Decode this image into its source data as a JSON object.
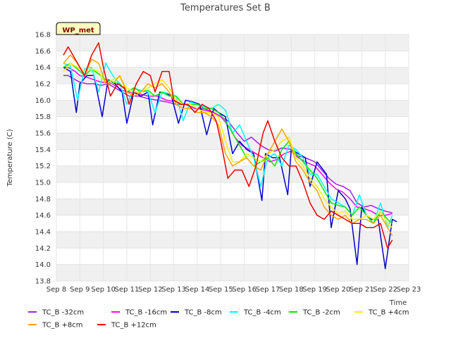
{
  "chart_data": {
    "type": "line",
    "title": "Temperatures Set B",
    "xlabel": "Time",
    "ylabel": "Temperature (C)",
    "badge": "WP_met",
    "xlim": [
      8,
      23
    ],
    "ylim": [
      13.8,
      16.8
    ],
    "yticks": [
      "13.8",
      "14.0",
      "14.2",
      "14.4",
      "14.6",
      "14.8",
      "15.0",
      "15.2",
      "15.4",
      "15.6",
      "15.8",
      "16.0",
      "16.2",
      "16.4",
      "16.6",
      "16.8"
    ],
    "xticks": [
      "Sep 8",
      "Sep 9",
      "Sep 10",
      "Sep 11",
      "Sep 12",
      "Sep 13",
      "Sep 14",
      "Sep 15",
      "Sep 16",
      "Sep 17",
      "Sep 18",
      "Sep 19",
      "Sep 20",
      "Sep 21",
      "Sep 22",
      "Sep 23"
    ],
    "grid": true,
    "legend_position": "bottom",
    "series": [
      {
        "name": "TC_B -32cm",
        "color": "#a020f0",
        "x": [
          8.3,
          8.5,
          8.8,
          9.0,
          9.3,
          9.6,
          9.9,
          10.2,
          10.5,
          10.8,
          11.1,
          11.5,
          11.9,
          12.3,
          12.7,
          13.1,
          13.5,
          13.9,
          14.3,
          14.7,
          15.0,
          15.3,
          15.7,
          16.0,
          16.3,
          16.7,
          17.0,
          17.3,
          17.6,
          18.0,
          18.3,
          18.6,
          19.0,
          19.3,
          19.6,
          19.9,
          20.2,
          20.5,
          20.8,
          21.1,
          21.4,
          21.7,
          22.0,
          22.3
        ],
        "y": [
          16.3,
          16.3,
          16.25,
          16.22,
          16.2,
          16.2,
          16.18,
          16.2,
          16.15,
          16.1,
          16.05,
          16.05,
          16.02,
          16.0,
          15.98,
          15.95,
          15.95,
          15.9,
          15.9,
          15.85,
          15.8,
          15.75,
          15.6,
          15.5,
          15.55,
          15.45,
          15.4,
          15.38,
          15.42,
          15.4,
          15.32,
          15.3,
          15.25,
          15.15,
          15.05,
          14.98,
          14.95,
          14.9,
          14.75,
          14.7,
          14.72,
          14.68,
          14.65,
          14.63
        ]
      },
      {
        "name": "TC_B -16cm",
        "color": "#ff00ff",
        "x": [
          8.3,
          8.5,
          8.8,
          9.0,
          9.3,
          9.6,
          9.9,
          10.2,
          10.5,
          10.8,
          11.1,
          11.5,
          11.9,
          12.3,
          12.7,
          13.1,
          13.5,
          13.9,
          14.3,
          14.7,
          15.0,
          15.3,
          15.6,
          15.9,
          16.2,
          16.5,
          16.8,
          17.1,
          17.4,
          17.7,
          18.0,
          18.3,
          18.6,
          19.0,
          19.3,
          19.6,
          19.9,
          20.2,
          20.5,
          20.8,
          21.1,
          21.4,
          21.7,
          22.0,
          22.3
        ],
        "y": [
          16.4,
          16.4,
          16.35,
          16.3,
          16.28,
          16.25,
          16.22,
          16.22,
          16.18,
          16.12,
          16.1,
          16.08,
          16.05,
          16.05,
          16.0,
          15.98,
          15.95,
          15.9,
          15.88,
          15.85,
          15.8,
          15.7,
          15.55,
          15.45,
          15.4,
          15.35,
          15.3,
          15.25,
          15.28,
          15.35,
          15.38,
          15.3,
          15.25,
          15.2,
          15.1,
          15.0,
          14.92,
          14.88,
          14.8,
          14.7,
          14.68,
          14.65,
          14.6,
          14.6,
          14.62
        ]
      },
      {
        "name": "TC_B -8cm",
        "color": "#0000cd",
        "x": [
          8.3,
          8.6,
          8.85,
          9.0,
          9.3,
          9.6,
          9.95,
          10.2,
          10.5,
          10.8,
          11.0,
          11.3,
          11.6,
          11.9,
          12.1,
          12.4,
          12.7,
          12.9,
          13.2,
          13.5,
          13.8,
          14.1,
          14.4,
          14.7,
          14.9,
          15.2,
          15.5,
          15.8,
          16.1,
          16.4,
          16.75,
          16.9,
          17.2,
          17.5,
          17.85,
          18.0,
          18.3,
          18.6,
          18.8,
          19.1,
          19.5,
          19.7,
          20.0,
          20.3,
          20.5,
          20.8,
          21.0,
          21.2,
          21.4,
          21.7,
          22.0,
          22.3,
          22.5
        ],
        "y": [
          16.4,
          16.35,
          15.85,
          16.2,
          16.3,
          16.3,
          15.8,
          16.25,
          16.2,
          16.1,
          15.72,
          16.1,
          16.05,
          16.1,
          15.7,
          16.1,
          16.08,
          16.05,
          15.72,
          16.0,
          15.98,
          15.95,
          15.58,
          15.9,
          15.85,
          15.8,
          15.35,
          15.5,
          15.4,
          15.35,
          14.78,
          15.35,
          15.3,
          15.3,
          14.85,
          15.4,
          15.35,
          15.3,
          14.95,
          15.25,
          15.1,
          14.45,
          14.9,
          14.8,
          14.68,
          14.0,
          14.7,
          14.6,
          14.55,
          14.55,
          13.95,
          14.55,
          14.52
        ]
      },
      {
        "name": "TC_B -4cm",
        "color": "#00ffff",
        "x": [
          8.3,
          8.6,
          8.9,
          9.2,
          9.5,
          9.8,
          10.1,
          10.4,
          10.7,
          11.0,
          11.3,
          11.6,
          11.9,
          12.2,
          12.5,
          12.8,
          13.1,
          13.4,
          13.7,
          14.0,
          14.3,
          14.6,
          14.9,
          15.2,
          15.5,
          15.8,
          16.1,
          16.4,
          16.7,
          17.0,
          17.3,
          17.6,
          17.9,
          18.2,
          18.5,
          18.8,
          19.1,
          19.4,
          19.7,
          20.0,
          20.3,
          20.6,
          20.9,
          21.2,
          21.5,
          21.8,
          22.1,
          22.3
        ],
        "y": [
          16.45,
          16.42,
          16.0,
          16.38,
          16.4,
          16.1,
          16.45,
          16.3,
          16.2,
          15.95,
          16.15,
          16.12,
          16.1,
          15.85,
          16.1,
          16.08,
          16.05,
          15.75,
          15.98,
          15.95,
          15.92,
          15.9,
          15.95,
          15.88,
          15.6,
          15.7,
          15.5,
          15.3,
          14.95,
          15.3,
          15.35,
          15.2,
          15.45,
          15.4,
          15.3,
          15.1,
          15.1,
          14.95,
          14.8,
          14.75,
          14.7,
          14.6,
          14.85,
          14.6,
          14.5,
          14.75,
          14.45,
          14.6
        ]
      },
      {
        "name": "TC_B -2cm",
        "color": "#00ee00",
        "x": [
          8.3,
          8.6,
          8.9,
          9.2,
          9.5,
          9.8,
          10.1,
          10.4,
          10.7,
          11.0,
          11.3,
          11.6,
          11.9,
          12.2,
          12.5,
          12.8,
          13.1,
          13.4,
          13.7,
          14.0,
          14.3,
          14.6,
          14.9,
          15.2,
          15.5,
          15.8,
          16.1,
          16.4,
          16.7,
          17.0,
          17.3,
          17.6,
          17.9,
          18.2,
          18.5,
          18.8,
          19.1,
          19.4,
          19.7,
          20.0,
          20.3,
          20.6,
          20.9,
          21.2,
          21.5,
          21.8,
          22.1,
          22.3
        ],
        "y": [
          16.4,
          16.45,
          16.38,
          16.3,
          16.38,
          16.32,
          16.25,
          16.22,
          16.2,
          16.1,
          16.15,
          16.1,
          16.12,
          16.05,
          16.1,
          16.05,
          16.05,
          15.95,
          15.95,
          15.95,
          15.9,
          15.9,
          15.85,
          15.75,
          15.6,
          15.45,
          15.3,
          15.2,
          15.25,
          15.3,
          15.2,
          15.4,
          15.5,
          15.35,
          15.25,
          15.15,
          15.05,
          14.9,
          14.75,
          14.72,
          14.7,
          14.6,
          14.7,
          14.6,
          14.5,
          14.65,
          14.55,
          14.5
        ]
      },
      {
        "name": "TC_B +4cm",
        "color": "#ffee00",
        "x": [
          8.3,
          8.6,
          8.9,
          9.2,
          9.5,
          9.8,
          10.1,
          10.4,
          10.7,
          11.0,
          11.3,
          11.6,
          11.9,
          12.2,
          12.5,
          12.8,
          13.1,
          13.4,
          13.7,
          14.0,
          14.3,
          14.6,
          14.9,
          15.2,
          15.5,
          15.8,
          16.1,
          16.4,
          16.7,
          17.0,
          17.3,
          17.6,
          17.9,
          18.2,
          18.5,
          18.8,
          19.1,
          19.4,
          19.7,
          20.0,
          20.3,
          20.6,
          20.9,
          21.2,
          21.5,
          21.8,
          22.1,
          22.3
        ],
        "y": [
          16.35,
          16.45,
          16.4,
          16.35,
          16.38,
          16.35,
          16.2,
          16.25,
          16.28,
          16.15,
          16.1,
          16.1,
          16.15,
          16.2,
          16.25,
          16.15,
          16.0,
          15.95,
          15.95,
          15.9,
          15.85,
          15.85,
          15.8,
          15.5,
          15.25,
          15.25,
          15.35,
          15.3,
          15.25,
          15.35,
          15.4,
          15.5,
          15.55,
          15.3,
          15.2,
          15.05,
          14.95,
          14.8,
          14.7,
          14.62,
          14.65,
          14.55,
          14.55,
          14.6,
          14.55,
          14.65,
          14.5,
          14.45
        ]
      },
      {
        "name": "TC_B +8cm",
        "color": "#ffa500",
        "x": [
          8.3,
          8.6,
          8.9,
          9.2,
          9.5,
          9.8,
          10.1,
          10.4,
          10.7,
          11.0,
          11.3,
          11.6,
          11.9,
          12.2,
          12.5,
          12.8,
          13.1,
          13.4,
          13.7,
          14.0,
          14.3,
          14.6,
          14.9,
          15.2,
          15.5,
          15.8,
          16.1,
          16.4,
          16.7,
          17.0,
          17.3,
          17.6,
          17.9,
          18.2,
          18.5,
          18.8,
          19.1,
          19.4,
          19.7,
          20.0,
          20.3,
          20.6,
          20.9,
          21.2,
          21.5,
          21.8,
          22.1,
          22.3
        ],
        "y": [
          16.45,
          16.55,
          16.45,
          16.3,
          16.5,
          16.45,
          16.2,
          16.2,
          16.3,
          16.1,
          16.05,
          16.1,
          16.2,
          16.15,
          16.2,
          16.1,
          15.95,
          15.9,
          15.9,
          15.85,
          15.85,
          15.8,
          15.7,
          15.35,
          15.2,
          15.25,
          15.3,
          15.2,
          15.15,
          15.35,
          15.5,
          15.65,
          15.5,
          15.25,
          15.15,
          15.0,
          14.9,
          14.7,
          14.6,
          14.55,
          14.6,
          14.5,
          14.55,
          14.55,
          14.5,
          14.6,
          14.45,
          14.35
        ]
      },
      {
        "name": "TC_B +12cm",
        "color": "#ee0000",
        "x": [
          8.3,
          8.5,
          8.8,
          9.0,
          9.2,
          9.5,
          9.8,
          10.0,
          10.3,
          10.6,
          10.9,
          11.1,
          11.4,
          11.7,
          12.0,
          12.2,
          12.5,
          12.8,
          13.0,
          13.3,
          13.6,
          13.9,
          14.2,
          14.5,
          14.8,
          15.0,
          15.3,
          15.6,
          15.9,
          16.2,
          16.5,
          16.8,
          17.0,
          17.3,
          17.6,
          17.9,
          18.2,
          18.5,
          18.8,
          19.1,
          19.4,
          19.7,
          20.0,
          20.3,
          20.6,
          20.9,
          21.2,
          21.5,
          21.8,
          22.1,
          22.3
        ],
        "y": [
          16.55,
          16.65,
          16.5,
          16.4,
          16.3,
          16.55,
          16.7,
          16.4,
          16.05,
          16.2,
          16.15,
          15.95,
          16.2,
          16.35,
          16.3,
          16.1,
          16.35,
          16.35,
          16.0,
          15.95,
          15.95,
          15.85,
          15.95,
          15.9,
          15.75,
          15.5,
          15.05,
          15.15,
          15.15,
          14.95,
          15.2,
          15.6,
          15.75,
          15.5,
          15.3,
          15.2,
          15.2,
          15.0,
          14.75,
          14.6,
          14.55,
          14.65,
          14.6,
          14.55,
          14.5,
          14.5,
          14.45,
          14.45,
          14.5,
          14.2,
          14.3
        ]
      }
    ]
  }
}
